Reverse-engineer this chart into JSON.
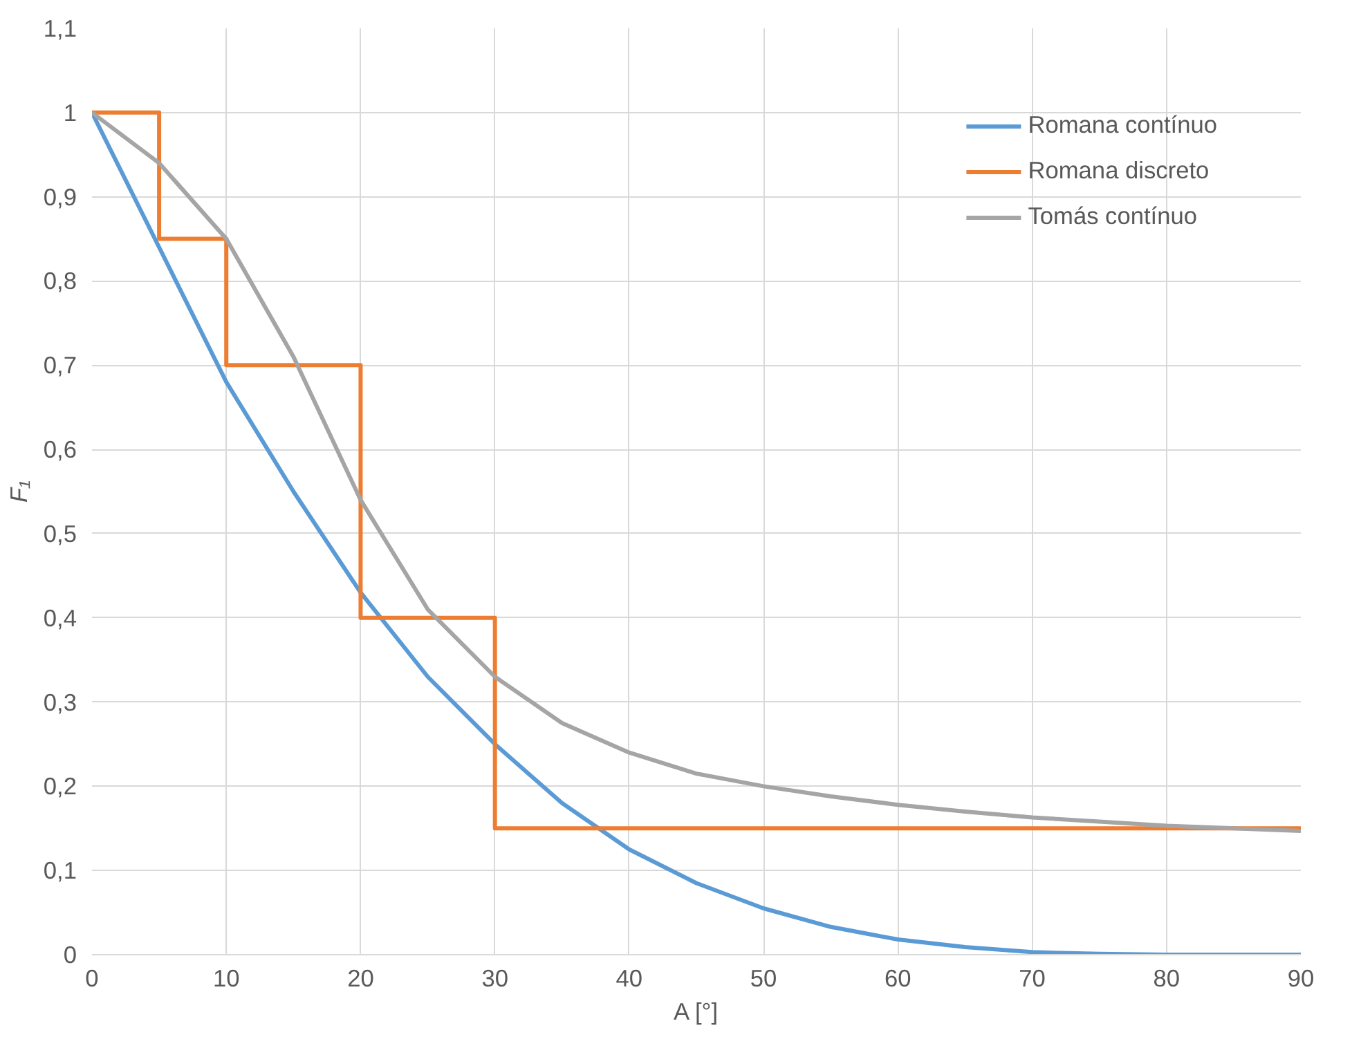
{
  "chart_data": {
    "type": "line",
    "xlabel": "A [°]",
    "ylabel": "F₁",
    "xlim": [
      0,
      90
    ],
    "ylim": [
      0,
      1.1
    ],
    "xticks": [
      0,
      10,
      20,
      30,
      40,
      50,
      60,
      70,
      80,
      90
    ],
    "yticks": [
      0,
      {
        "value": 0.1,
        "label": "0,1"
      },
      {
        "value": 0.2,
        "label": "0,2"
      },
      {
        "value": 0.3,
        "label": "0,3"
      },
      {
        "value": 0.4,
        "label": "0,4"
      },
      {
        "value": 0.5,
        "label": "0,5"
      },
      {
        "value": 0.6,
        "label": "0,6"
      },
      {
        "value": 0.7,
        "label": "0,7"
      },
      {
        "value": 0.8,
        "label": "0,8"
      },
      {
        "value": 0.9,
        "label": "0,9"
      },
      1,
      {
        "value": 1.1,
        "label": "1,1"
      }
    ],
    "grid": true,
    "legend": "top right",
    "line_style": "solid",
    "marker": "none",
    "series": [
      {
        "name": "Romana contínuo",
        "color": "#5b9bd5",
        "x": [
          0,
          5,
          10,
          15,
          20,
          25,
          30,
          35,
          40,
          45,
          50,
          55,
          60,
          65,
          70,
          75,
          80,
          85,
          90
        ],
        "values": [
          1,
          0.84,
          0.68,
          0.55,
          0.43,
          0.33,
          0.25,
          0.18,
          0.125,
          0.085,
          0.055,
          0.033,
          0.018,
          0.009,
          0.003,
          0.001,
          0,
          0,
          0
        ]
      },
      {
        "name": "Romana discreto",
        "color": "#ed7d31",
        "x": [
          0,
          5,
          5,
          10,
          10,
          20,
          20,
          30,
          30,
          90
        ],
        "values": [
          1,
          1,
          0.85,
          0.85,
          0.7,
          0.7,
          0.4,
          0.4,
          0.15,
          0.15
        ]
      },
      {
        "name": "Tomás contínuo",
        "color": "#a5a5a5",
        "x": [
          0,
          5,
          10,
          15,
          20,
          25,
          30,
          35,
          40,
          45,
          50,
          55,
          60,
          65,
          70,
          75,
          80,
          85,
          90
        ],
        "values": [
          1,
          0.94,
          0.85,
          0.71,
          0.54,
          0.41,
          0.33,
          0.275,
          0.24,
          0.215,
          0.2,
          0.188,
          0.178,
          0.17,
          0.163,
          0.158,
          0.153,
          0.15,
          0.147
        ]
      }
    ]
  }
}
